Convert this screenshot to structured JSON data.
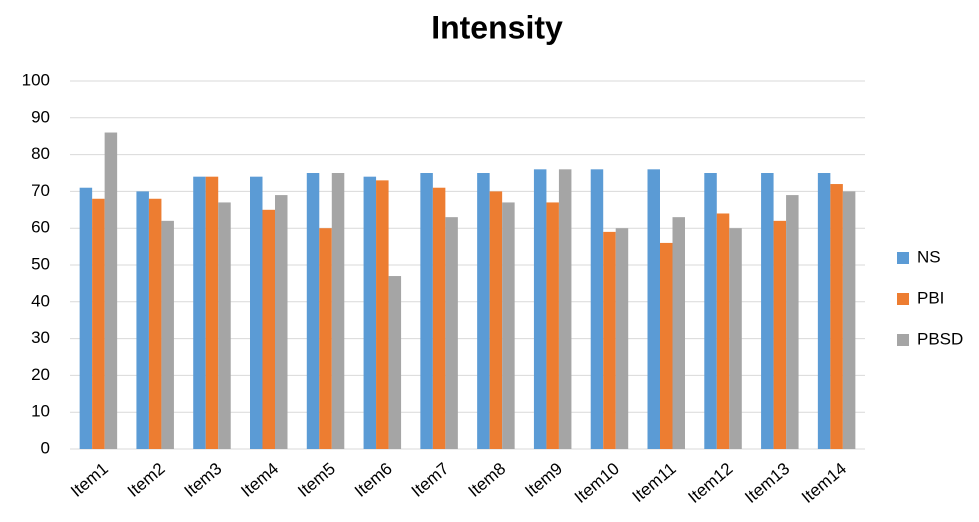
{
  "chart_data": {
    "type": "bar",
    "title": "Intensity",
    "categories": [
      "Item1",
      "Item2",
      "Item3",
      "Item4",
      "Item5",
      "Item6",
      "Item7",
      "Item8",
      "Item9",
      "Item10",
      "Item11",
      "Item12",
      "Item13",
      "Item14"
    ],
    "series": [
      {
        "name": "NS",
        "color": "#5b9bd5",
        "values": [
          71,
          70,
          74,
          74,
          75,
          74,
          75,
          75,
          76,
          76,
          76,
          75,
          75,
          75
        ]
      },
      {
        "name": "PBI",
        "color": "#ed7d31",
        "values": [
          68,
          68,
          74,
          65,
          60,
          73,
          71,
          70,
          67,
          59,
          56,
          64,
          62,
          72
        ]
      },
      {
        "name": "PBSD",
        "color": "#a5a5a5",
        "values": [
          86,
          62,
          67,
          69,
          75,
          47,
          63,
          67,
          76,
          60,
          63,
          60,
          69,
          70
        ]
      }
    ],
    "ylim": [
      0,
      100
    ],
    "yticks": [
      0,
      10,
      20,
      30,
      40,
      50,
      60,
      70,
      80,
      90,
      100
    ],
    "grid": true,
    "legend": "right"
  }
}
